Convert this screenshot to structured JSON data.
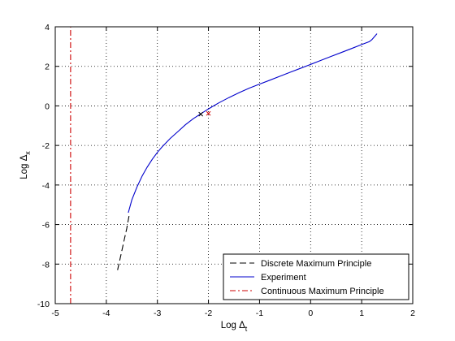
{
  "chart_data": {
    "type": "line",
    "xlabel": "Log Δ",
    "xlabel_sub": "t",
    "ylabel": "Log Δ",
    "ylabel_sub": "x",
    "xlim": [
      -5,
      2
    ],
    "ylim": [
      -10,
      4
    ],
    "xticks": [
      "-5",
      "-4",
      "-3",
      "-2",
      "-1",
      "0",
      "1",
      "2"
    ],
    "yticks": [
      "-10",
      "-8",
      "-6",
      "-4",
      "-2",
      "0",
      "2",
      "4"
    ],
    "grid": true,
    "legend_position": "bottom-right",
    "series": [
      {
        "name": "Discrete Maximum Principle",
        "style": "dashed",
        "color": "#000000",
        "x": [
          -3.78,
          -3.72,
          -3.66,
          -3.6,
          -3.55
        ],
        "y": [
          -8.3,
          -7.6,
          -6.9,
          -6.2,
          -5.5
        ]
      },
      {
        "name": "Experiment",
        "style": "solid",
        "color": "#0000cc",
        "x": [
          -3.57,
          -3.5,
          -3.4,
          -3.3,
          -3.2,
          -3.1,
          -3.0,
          -2.9,
          -2.75,
          -2.6,
          -2.45,
          -2.3,
          -2.15,
          -2.0,
          -1.8,
          -1.6,
          -1.4,
          -1.2,
          -1.0,
          -0.8,
          -0.6,
          -0.4,
          -0.2,
          0.0,
          0.2,
          0.4,
          0.6,
          0.8,
          1.0,
          1.15,
          1.2,
          1.3
        ],
        "y": [
          -5.4,
          -4.75,
          -4.1,
          -3.55,
          -3.1,
          -2.7,
          -2.35,
          -2.05,
          -1.65,
          -1.3,
          -0.95,
          -0.65,
          -0.4,
          -0.15,
          0.15,
          0.42,
          0.67,
          0.9,
          1.1,
          1.3,
          1.5,
          1.7,
          1.9,
          2.1,
          2.3,
          2.5,
          2.7,
          2.9,
          3.1,
          3.25,
          3.35,
          3.65
        ]
      },
      {
        "name": "Continuous Maximum Principle",
        "style": "dash-dot",
        "color": "#cc0000",
        "x": [
          -4.7,
          -4.7
        ],
        "y": [
          -10,
          4
        ]
      }
    ],
    "markers": [
      {
        "x": -2.15,
        "y": -0.42,
        "color": "#000000",
        "symbol": "x"
      },
      {
        "x": -2.0,
        "y": -0.38,
        "color": "#cc0000",
        "symbol": "x"
      }
    ]
  }
}
